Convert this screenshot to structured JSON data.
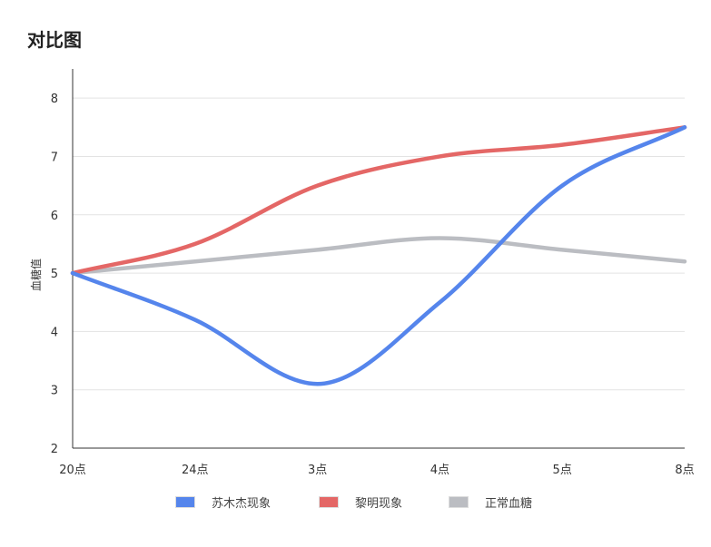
{
  "title": "对比图",
  "chart_data": {
    "type": "line",
    "title": "对比图",
    "xlabel": "",
    "ylabel": "血糖值",
    "categories": [
      "20点",
      "24点",
      "3点",
      "4点",
      "5点",
      "8点"
    ],
    "ylim": [
      2,
      8.5
    ],
    "yticks": [
      2,
      3,
      4,
      5,
      6,
      7,
      8
    ],
    "grid": "horizontal",
    "legend_position": "bottom",
    "smooth": true,
    "series": [
      {
        "name": "苏木杰现象",
        "color": "#5585ec",
        "values": [
          5.0,
          4.2,
          3.1,
          4.5,
          6.5,
          7.5
        ]
      },
      {
        "name": "黎明现象",
        "color": "#e46766",
        "values": [
          5.0,
          5.5,
          6.5,
          7.0,
          7.2,
          7.5
        ]
      },
      {
        "name": "正常血糖",
        "color": "#bbbdc2",
        "values": [
          5.0,
          5.2,
          5.4,
          5.6,
          5.4,
          5.2
        ]
      }
    ]
  }
}
